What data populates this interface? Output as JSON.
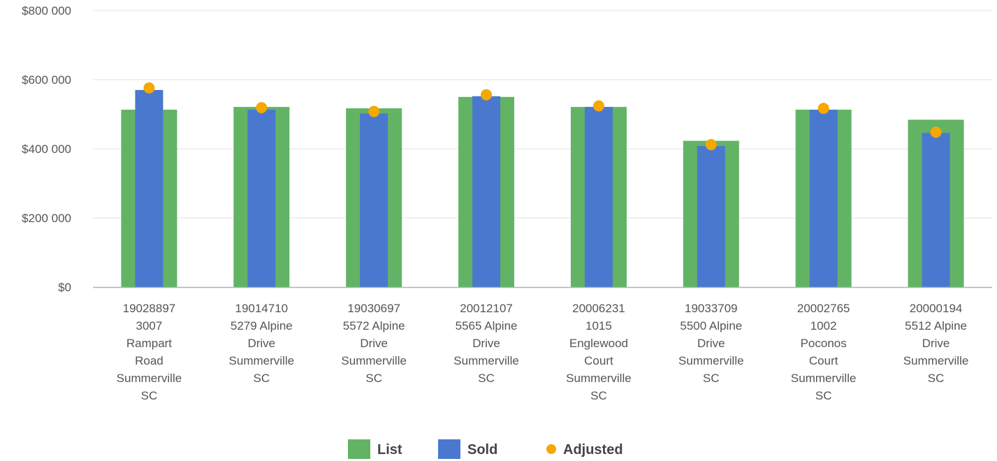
{
  "chart_data": {
    "type": "bar",
    "categories": [
      [
        "19028897",
        "3007",
        "Rampart",
        "Road",
        "Summerville",
        "SC"
      ],
      [
        "19014710",
        "5279 Alpine",
        "Drive",
        "Summerville",
        "SC"
      ],
      [
        "19030697",
        "5572 Alpine",
        "Drive",
        "Summerville",
        "SC"
      ],
      [
        "20012107",
        "5565 Alpine",
        "Drive",
        "Summerville",
        "SC"
      ],
      [
        "20006231",
        "1015",
        "Englewood",
        "Court",
        "Summerville",
        "SC"
      ],
      [
        "19033709",
        "5500 Alpine",
        "Drive",
        "Summerville",
        "SC"
      ],
      [
        "20002765",
        "1002",
        "Poconos",
        "Court",
        "Summerville",
        "SC"
      ],
      [
        "20000194",
        "5512 Alpine",
        "Drive",
        "Summerville",
        "SC"
      ]
    ],
    "series": [
      {
        "name": "List",
        "kind": "bar-wide",
        "color": "#63b365",
        "values": [
          513000,
          521000,
          517000,
          550000,
          521000,
          423000,
          513000,
          484000
        ]
      },
      {
        "name": "Sold",
        "kind": "bar-narrow",
        "color": "#4a78cf",
        "values": [
          570000,
          513000,
          502000,
          552000,
          521000,
          408000,
          513000,
          446000
        ]
      },
      {
        "name": "Adjusted",
        "kind": "dot",
        "color": "#f5a800",
        "values": [
          576000,
          519000,
          508000,
          556000,
          524000,
          412000,
          517000,
          448000
        ]
      }
    ],
    "y_ticks": [
      "$0",
      "$200 000",
      "$400 000",
      "$600 000",
      "$800 000"
    ],
    "ylim": [
      0,
      800000
    ],
    "grid": true,
    "legend_position": "bottom"
  }
}
